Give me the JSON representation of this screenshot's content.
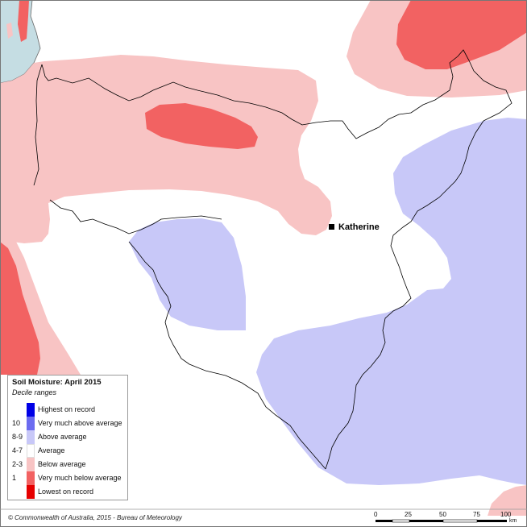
{
  "place": {
    "name": "Katherine"
  },
  "legend": {
    "title": "Soil Moisture: April 2015",
    "subtitle": "Decile ranges",
    "items": [
      {
        "code": "",
        "label": "Highest on record",
        "color": "#0000e6"
      },
      {
        "code": "10",
        "label": "Very much above average",
        "color": "#6b6bf0"
      },
      {
        "code": "8-9",
        "label": "Above average",
        "color": "#c8c8f8"
      },
      {
        "code": "4-7",
        "label": "Average",
        "color": "#ffffff"
      },
      {
        "code": "2-3",
        "label": "Below average",
        "color": "#f8c4c4"
      },
      {
        "code": "1",
        "label": "Very much below average",
        "color": "#f26262"
      },
      {
        "code": "",
        "label": "Lowest on record",
        "color": "#e60000"
      }
    ]
  },
  "scale_bar": {
    "ticks": [
      "0",
      "25",
      "50",
      "75",
      "100"
    ],
    "unit": "km"
  },
  "footer": {
    "credit": "© Commonwealth of Australia, 2015 - Bureau of Meteorology"
  },
  "colors": {
    "sea": "#c5dde3",
    "above_average": "#c8c8f8",
    "below_average": "#f8c4c4",
    "very_much_below_average": "#f26262",
    "boundary": "#000000"
  }
}
